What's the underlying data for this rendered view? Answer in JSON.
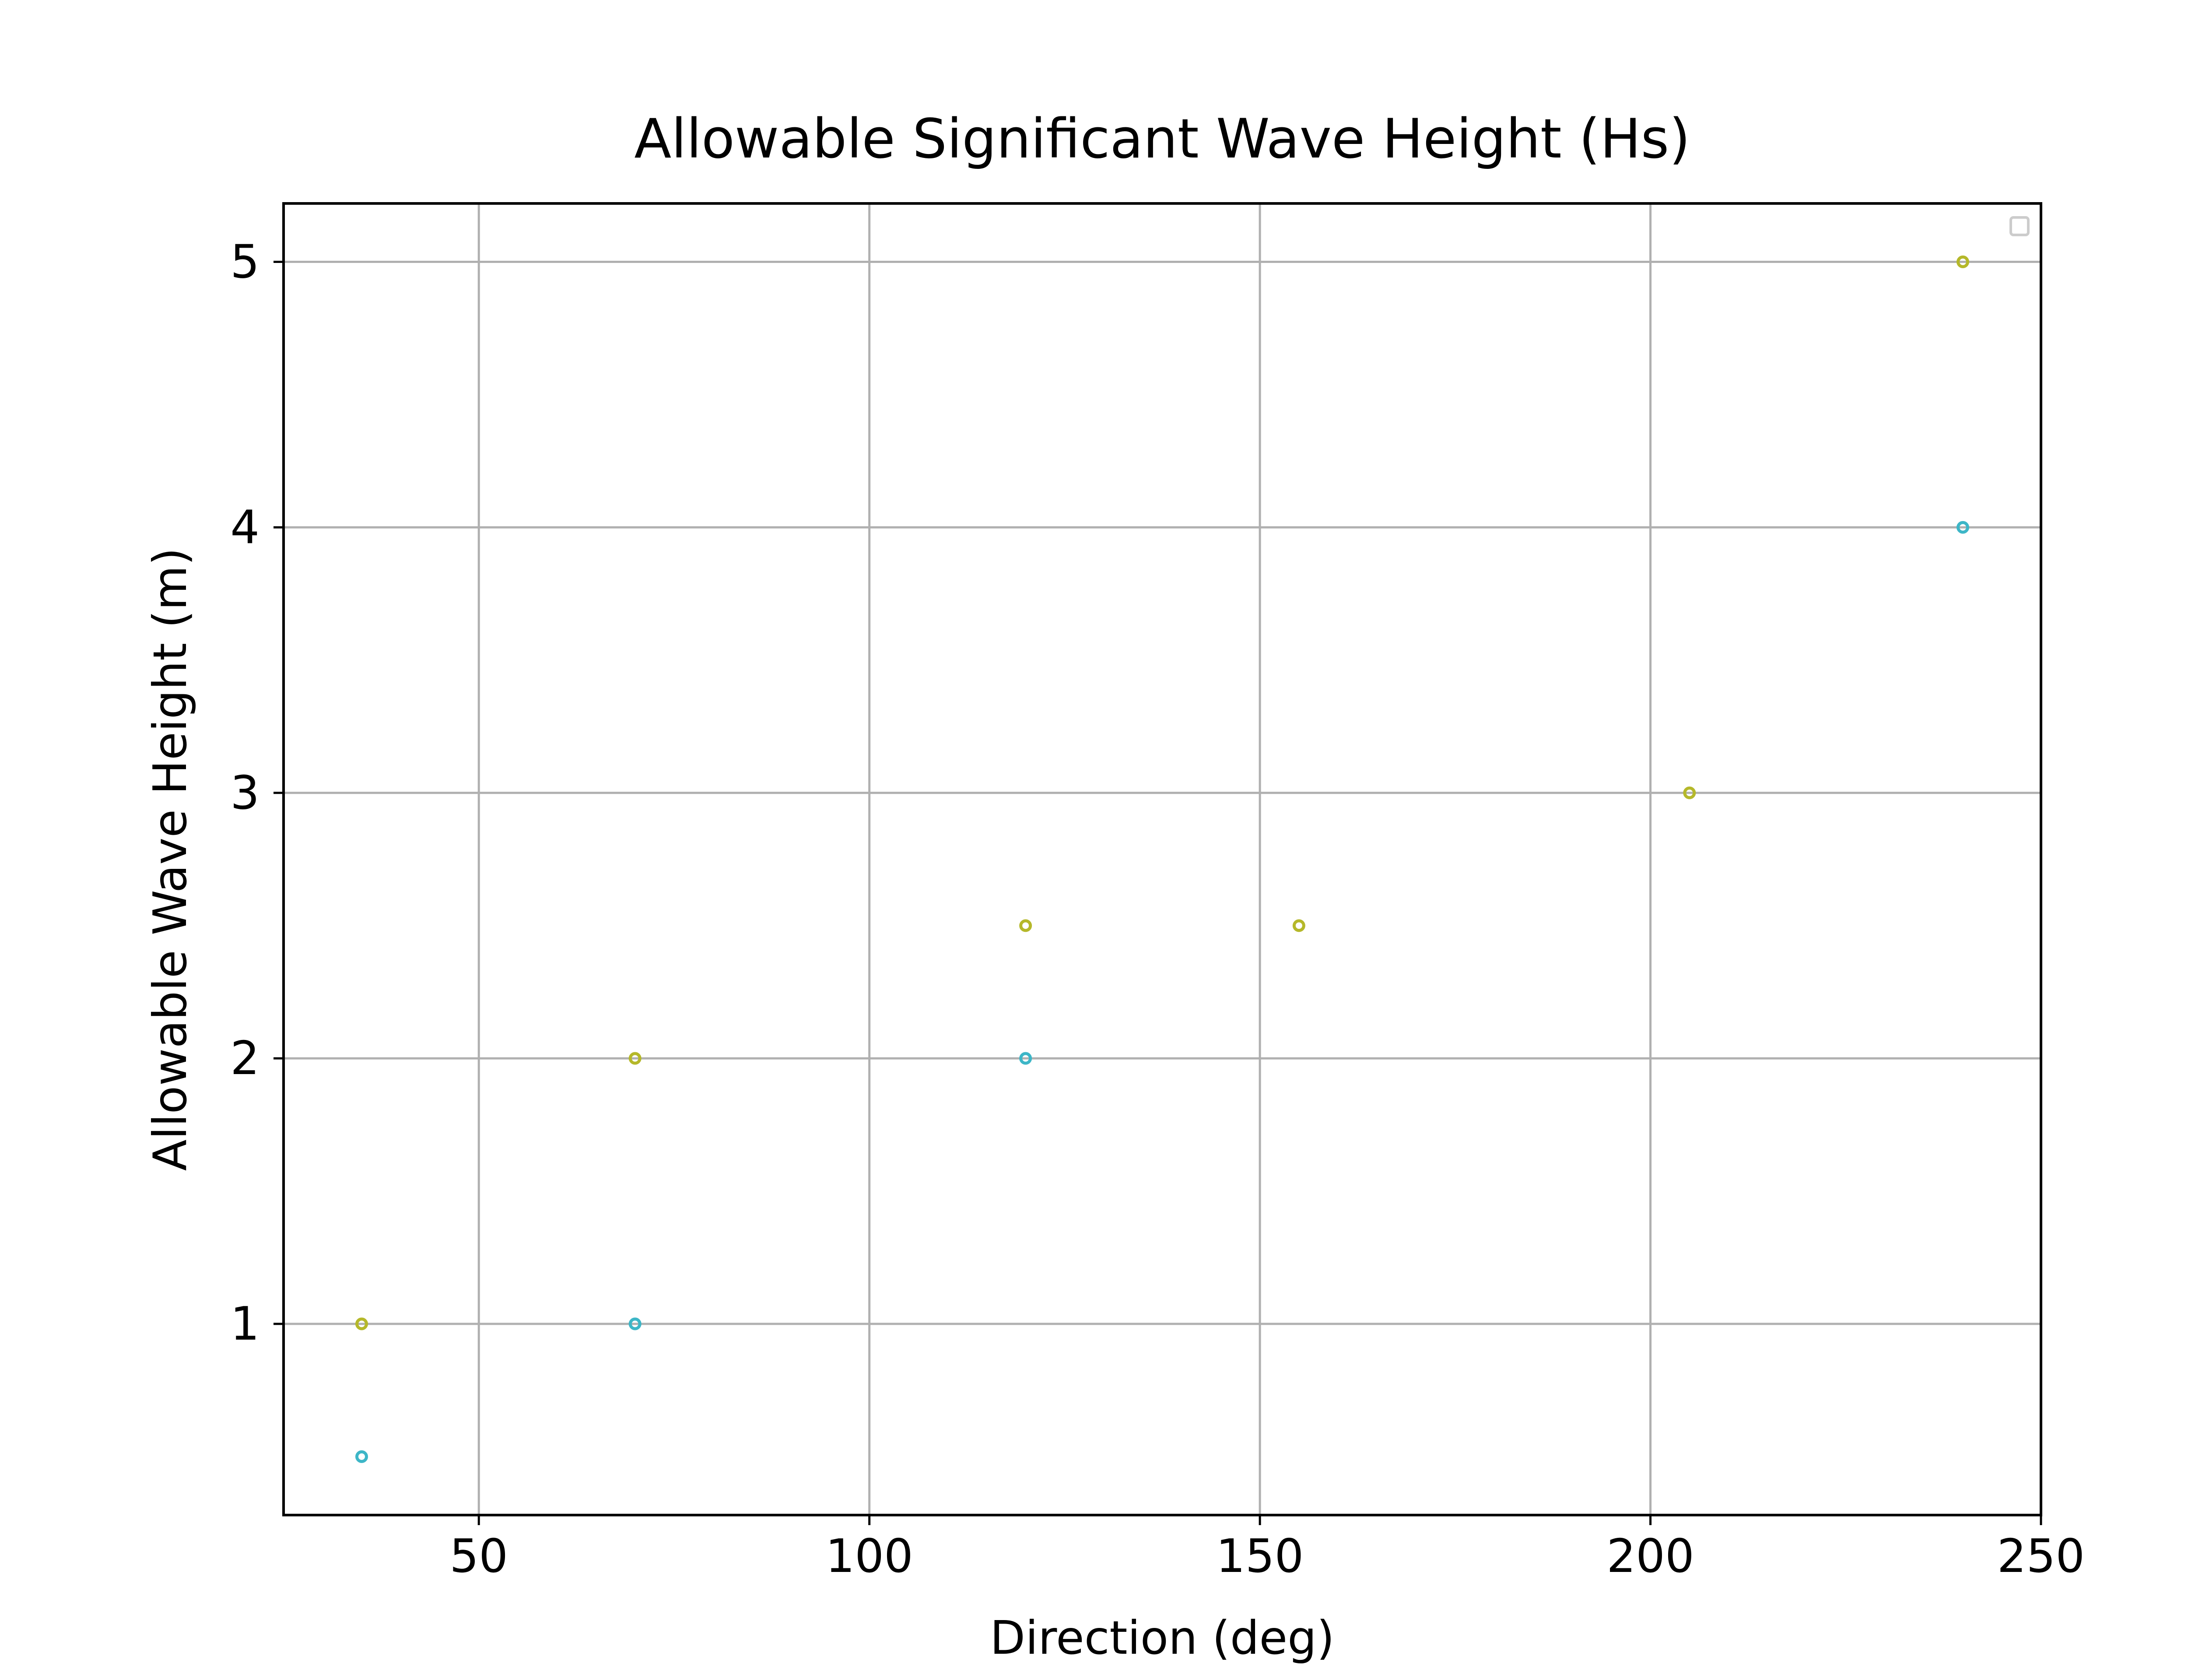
{
  "chart_data": {
    "type": "scatter",
    "title": "Allowable Significant Wave Height (Hs)",
    "xlabel": "Direction (deg)",
    "ylabel": "Allowable Wave Height (m)",
    "xlim": [
      25,
      250
    ],
    "ylim": [
      0.28,
      5.22
    ],
    "xticks": [
      50,
      100,
      150,
      200,
      250
    ],
    "xtick_labels": [
      "50",
      "100",
      "150",
      "200",
      "250"
    ],
    "yticks": [
      1,
      2,
      3,
      4,
      5
    ],
    "ytick_labels": [
      "1",
      "2",
      "3",
      "4",
      "5"
    ],
    "grid": true,
    "legend": "top-right, empty",
    "series": [
      {
        "color": "#b5b82a",
        "points": [
          {
            "x": 35,
            "y": 1.0
          },
          {
            "x": 70,
            "y": 2.0
          },
          {
            "x": 120,
            "y": 2.5
          },
          {
            "x": 155,
            "y": 2.5
          },
          {
            "x": 205,
            "y": 3.0
          },
          {
            "x": 240,
            "y": 5.0
          }
        ]
      },
      {
        "color": "#3db6c7",
        "points": [
          {
            "x": 35,
            "y": 0.5
          },
          {
            "x": 70,
            "y": 1.0
          },
          {
            "x": 120,
            "y": 2.0
          },
          {
            "x": 240,
            "y": 4.0
          }
        ]
      }
    ]
  }
}
